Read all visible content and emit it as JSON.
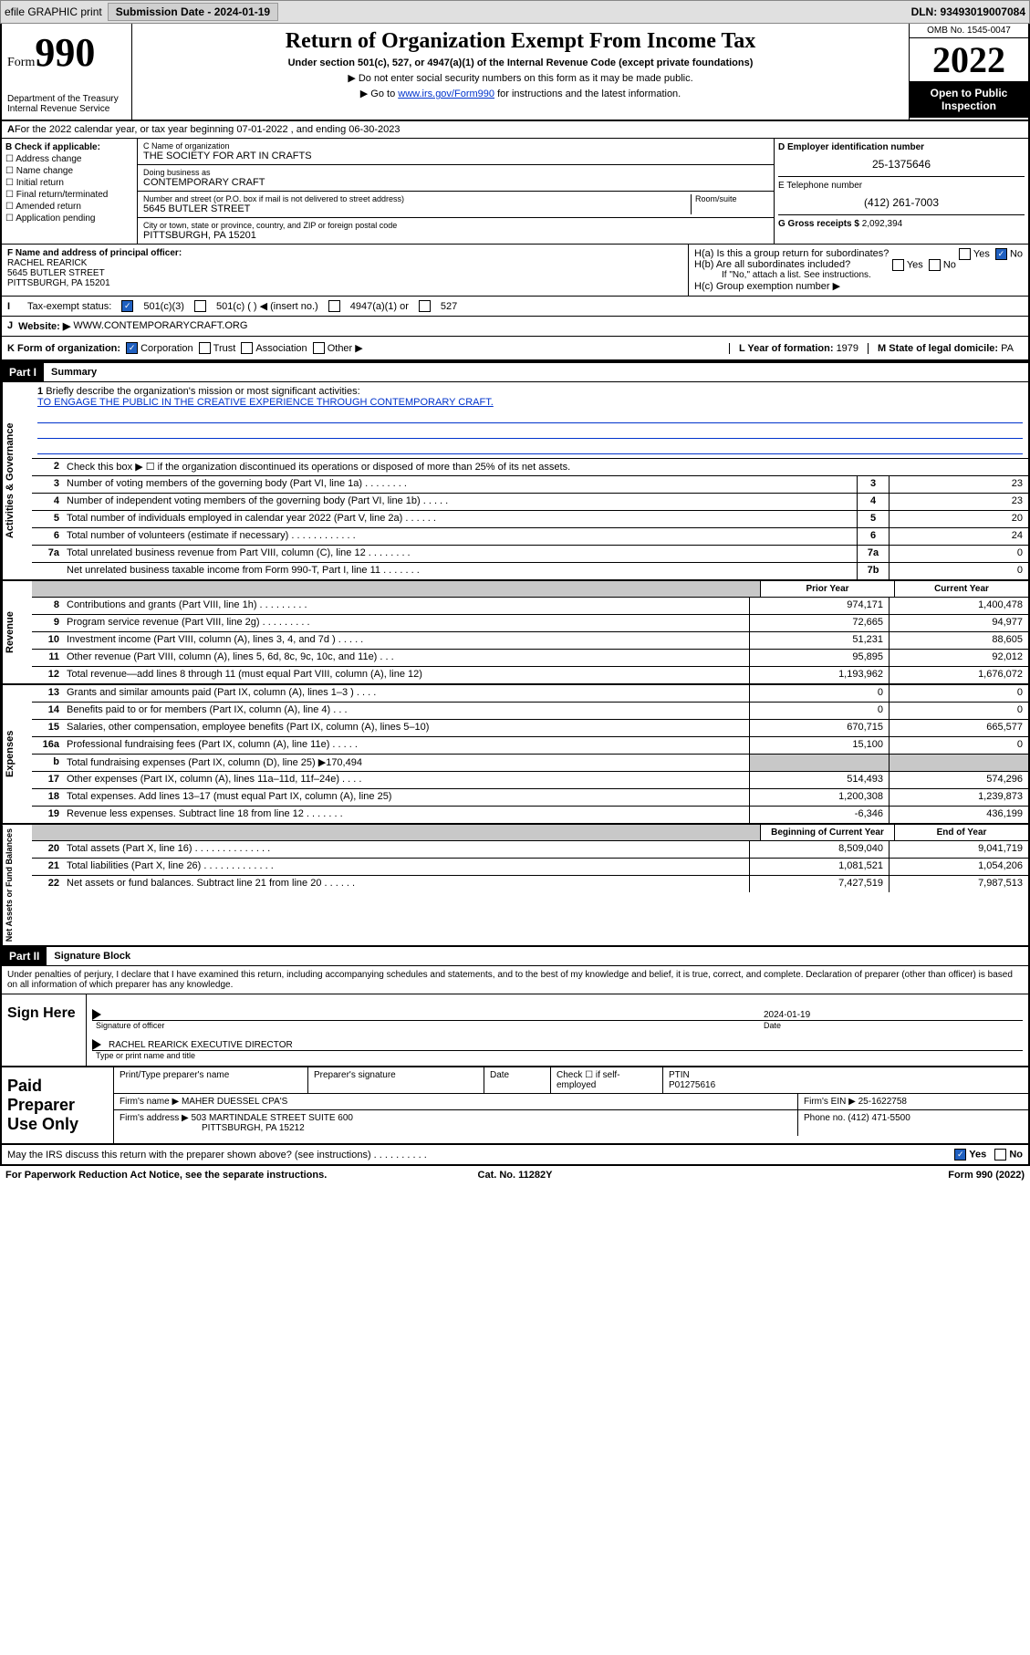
{
  "topbar": {
    "efile": "efile GRAPHIC print",
    "submission": "Submission Date - 2024-01-19",
    "dln": "DLN: 93493019007084"
  },
  "header": {
    "form_prefix": "Form",
    "form_num": "990",
    "dept": "Department of the Treasury Internal Revenue Service",
    "title": "Return of Organization Exempt From Income Tax",
    "sub": "Under section 501(c), 527, or 4947(a)(1) of the Internal Revenue Code (except private foundations)",
    "note1": "▶ Do not enter social security numbers on this form as it may be made public.",
    "note2_pre": "▶ Go to ",
    "note2_link": "www.irs.gov/Form990",
    "note2_post": " for instructions and the latest information.",
    "omb": "OMB No. 1545-0047",
    "year": "2022",
    "inspect": "Open to Public Inspection"
  },
  "A": {
    "text": "For the 2022 calendar year, or tax year beginning 07-01-2022   , and ending 06-30-2023"
  },
  "B": {
    "label": "B Check if applicable:",
    "items": [
      "Address change",
      "Name change",
      "Initial return",
      "Final return/terminated",
      "Amended return",
      "Application pending"
    ]
  },
  "C": {
    "name_lbl": "C Name of organization",
    "name": "THE SOCIETY FOR ART IN CRAFTS",
    "dba_lbl": "Doing business as",
    "dba": "CONTEMPORARY CRAFT",
    "street_lbl": "Number and street (or P.O. box if mail is not delivered to street address)",
    "room_lbl": "Room/suite",
    "street": "5645 BUTLER STREET",
    "city_lbl": "City or town, state or province, country, and ZIP or foreign postal code",
    "city": "PITTSBURGH, PA  15201"
  },
  "D": {
    "lbl": "D Employer identification number",
    "val": "25-1375646"
  },
  "E": {
    "lbl": "E Telephone number",
    "val": "(412) 261-7003"
  },
  "G": {
    "lbl": "G Gross receipts $",
    "val": "2,092,394"
  },
  "F": {
    "lbl": "F  Name and address of principal officer:",
    "name": "RACHEL REARICK",
    "addr1": "5645 BUTLER STREET",
    "addr2": "PITTSBURGH, PA  15201"
  },
  "H": {
    "a": "H(a)  Is this a group return for subordinates?",
    "a_no": "No",
    "a_yes": "Yes",
    "b": "H(b)  Are all subordinates included?",
    "b_note": "If \"No,\" attach a list. See instructions.",
    "c": "H(c)  Group exemption number ▶"
  },
  "I": {
    "lbl": "Tax-exempt status:",
    "opts": [
      "501(c)(3)",
      "501(c) (  ) ◀ (insert no.)",
      "4947(a)(1) or",
      "527"
    ]
  },
  "J": {
    "lbl": "Website: ▶",
    "val": "WWW.CONTEMPORARYCRAFT.ORG"
  },
  "K": {
    "lbl": "K Form of organization:",
    "opts": [
      "Corporation",
      "Trust",
      "Association",
      "Other ▶"
    ]
  },
  "L": {
    "lbl": "L Year of formation:",
    "val": "1979"
  },
  "M": {
    "lbl": "M State of legal domicile:",
    "val": "PA"
  },
  "part1": {
    "hdr": "Part I",
    "title": "Summary"
  },
  "mission": {
    "lbl": "Briefly describe the organization's mission or most significant activities:",
    "text": "TO ENGAGE THE PUBLIC IN THE CREATIVE EXPERIENCE THROUGH CONTEMPORARY CRAFT."
  },
  "line2": "Check this box ▶ ☐  if the organization discontinued its operations or disposed of more than 25% of its net assets.",
  "gov": [
    {
      "n": "3",
      "t": "Number of voting members of the governing body (Part VI, line 1a)  .    .    .    .    .    .    .    .",
      "k": "3",
      "v": "23"
    },
    {
      "n": "4",
      "t": "Number of independent voting members of the governing body (Part VI, line 1b)  .    .    .    .    .",
      "k": "4",
      "v": "23"
    },
    {
      "n": "5",
      "t": "Total number of individuals employed in calendar year 2022 (Part V, line 2a)  .    .    .    .    .    .",
      "k": "5",
      "v": "20"
    },
    {
      "n": "6",
      "t": "Total number of volunteers (estimate if necessary)  .    .    .    .    .    .    .    .    .    .    .    .",
      "k": "6",
      "v": "24"
    },
    {
      "n": "7a",
      "t": "Total unrelated business revenue from Part VIII, column (C), line 12  .    .    .    .    .    .    .    .",
      "k": "7a",
      "v": "0"
    },
    {
      "n": "",
      "t": "Net unrelated business taxable income from Form 990-T, Part I, line 11  .    .    .    .    .    .    .",
      "k": "7b",
      "v": "0"
    }
  ],
  "rev_hdr": {
    "prior": "Prior Year",
    "current": "Current Year"
  },
  "rev": [
    {
      "n": "8",
      "t": "Contributions and grants (Part VIII, line 1h)  .    .    .    .    .    .    .    .    .",
      "p": "974,171",
      "c": "1,400,478"
    },
    {
      "n": "9",
      "t": "Program service revenue (Part VIII, line 2g)  .    .    .    .    .    .    .    .    .",
      "p": "72,665",
      "c": "94,977"
    },
    {
      "n": "10",
      "t": "Investment income (Part VIII, column (A), lines 3, 4, and 7d )  .    .    .    .    .",
      "p": "51,231",
      "c": "88,605"
    },
    {
      "n": "11",
      "t": "Other revenue (Part VIII, column (A), lines 5, 6d, 8c, 9c, 10c, and 11e)  .    .    .",
      "p": "95,895",
      "c": "92,012"
    },
    {
      "n": "12",
      "t": "Total revenue—add lines 8 through 11 (must equal Part VIII, column (A), line 12)",
      "p": "1,193,962",
      "c": "1,676,072"
    }
  ],
  "exp": [
    {
      "n": "13",
      "t": "Grants and similar amounts paid (Part IX, column (A), lines 1–3 )  .    .    .    .",
      "p": "0",
      "c": "0"
    },
    {
      "n": "14",
      "t": "Benefits paid to or for members (Part IX, column (A), line 4)  .    .    .",
      "p": "0",
      "c": "0"
    },
    {
      "n": "15",
      "t": "Salaries, other compensation, employee benefits (Part IX, column (A), lines 5–10)",
      "p": "670,715",
      "c": "665,577"
    },
    {
      "n": "16a",
      "t": "Professional fundraising fees (Part IX, column (A), line 11e)  .    .    .    .    .",
      "p": "15,100",
      "c": "0"
    },
    {
      "n": "b",
      "t": "Total fundraising expenses (Part IX, column (D), line 25) ▶170,494",
      "p": "",
      "c": "",
      "grey": true
    },
    {
      "n": "17",
      "t": "Other expenses (Part IX, column (A), lines 11a–11d, 11f–24e)  .    .    .    .",
      "p": "514,493",
      "c": "574,296"
    },
    {
      "n": "18",
      "t": "Total expenses. Add lines 13–17 (must equal Part IX, column (A), line 25)",
      "p": "1,200,308",
      "c": "1,239,873"
    },
    {
      "n": "19",
      "t": "Revenue less expenses. Subtract line 18 from line 12  .    .    .    .    .    .    .",
      "p": "-6,346",
      "c": "436,199"
    }
  ],
  "net_hdr": {
    "begin": "Beginning of Current Year",
    "end": "End of Year"
  },
  "net": [
    {
      "n": "20",
      "t": "Total assets (Part X, line 16)  .    .    .    .    .    .    .    .    .    .    .    .    .    .",
      "p": "8,509,040",
      "c": "9,041,719"
    },
    {
      "n": "21",
      "t": "Total liabilities (Part X, line 26)  .    .    .    .    .    .    .    .    .    .    .    .    .",
      "p": "1,081,521",
      "c": "1,054,206"
    },
    {
      "n": "22",
      "t": "Net assets or fund balances. Subtract line 21 from line 20  .    .    .    .    .    .",
      "p": "7,427,519",
      "c": "7,987,513"
    }
  ],
  "vlabels": {
    "gov": "Activities & Governance",
    "rev": "Revenue",
    "exp": "Expenses",
    "net": "Net Assets or Fund Balances"
  },
  "part2": {
    "hdr": "Part II",
    "title": "Signature Block"
  },
  "sig": {
    "intro": "Under penalties of perjury, I declare that I have examined this return, including accompanying schedules and statements, and to the best of my knowledge and belief, it is true, correct, and complete. Declaration of preparer (other than officer) is based on all information of which preparer has any knowledge.",
    "here": "Sign Here",
    "sig_lbl": "Signature of officer",
    "date_lbl": "Date",
    "date": "2024-01-19",
    "name": "RACHEL REARICK  EXECUTIVE DIRECTOR",
    "name_lbl": "Type or print name and title"
  },
  "prep": {
    "label": "Paid Preparer Use Only",
    "h1": "Print/Type preparer's name",
    "h2": "Preparer's signature",
    "h3": "Date",
    "h4": "Check ☐ if self-employed",
    "h5": "PTIN",
    "ptin": "P01275616",
    "firm_lbl": "Firm's name    ▶",
    "firm": "MAHER DUESSEL CPA'S",
    "ein_lbl": "Firm's EIN ▶",
    "ein": "25-1622758",
    "addr_lbl": "Firm's address ▶",
    "addr1": "503 MARTINDALE STREET SUITE 600",
    "addr2": "PITTSBURGH, PA  15212",
    "phone_lbl": "Phone no.",
    "phone": "(412) 471-5500"
  },
  "discuss": {
    "text": "May the IRS discuss this return with the preparer shown above? (see instructions)  .    .    .    .    .    .    .    .    .    .",
    "yes": "Yes",
    "no": "No"
  },
  "foot": {
    "left": "For Paperwork Reduction Act Notice, see the separate instructions.",
    "mid": "Cat. No. 11282Y",
    "right": "Form 990 (2022)"
  }
}
